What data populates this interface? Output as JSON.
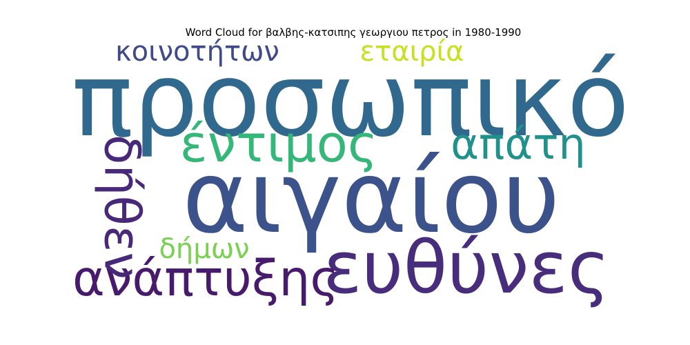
{
  "chart_data": {
    "type": "wordcloud",
    "title": "Word Cloud for βαλβης-κατσιπης γεωργιου πετρος in 1980-1990",
    "words": [
      {
        "text": "προσωπικό",
        "weight": 1.0,
        "color": "#31688e",
        "orientation": "horizontal"
      },
      {
        "text": "αιγαίου",
        "weight": 0.98,
        "color": "#3b528b",
        "orientation": "horizontal"
      },
      {
        "text": "ευθύνες",
        "weight": 0.7,
        "color": "#472d7b",
        "orientation": "horizontal"
      },
      {
        "text": "έντιμος",
        "weight": 0.5,
        "color": "#35b779",
        "orientation": "horizontal"
      },
      {
        "text": "ανάπτυξης",
        "weight": 0.48,
        "color": "#481a6c",
        "orientation": "horizontal"
      },
      {
        "text": "δήθεν",
        "weight": 0.48,
        "color": "#482878",
        "orientation": "vertical"
      },
      {
        "text": "απάτη",
        "weight": 0.42,
        "color": "#21918c",
        "orientation": "horizontal"
      },
      {
        "text": "κοινοτήτων",
        "weight": 0.27,
        "color": "#3e4a89",
        "orientation": "horizontal"
      },
      {
        "text": "εταιρία",
        "weight": 0.27,
        "color": "#c8e020",
        "orientation": "horizontal"
      },
      {
        "text": "δήμων",
        "weight": 0.27,
        "color": "#7ad151",
        "orientation": "horizontal"
      }
    ]
  }
}
